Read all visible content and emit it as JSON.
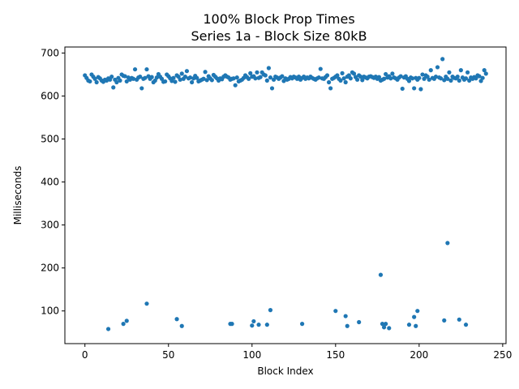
{
  "chart_data": {
    "type": "scatter",
    "title": "100% Block Prop Times",
    "subtitle": "Series 1a - Block Size 80kB",
    "xlabel": "Block Index",
    "ylabel": "Milliseconds",
    "xlim": [
      -12,
      252
    ],
    "ylim": [
      24,
      714
    ],
    "xticks": [
      0,
      50,
      100,
      150,
      200,
      250
    ],
    "yticks": [
      100,
      200,
      300,
      400,
      500,
      600,
      700
    ],
    "grid": false,
    "color": "#1f77b4",
    "series": [
      {
        "points": [
          [
            0,
            648
          ],
          [
            1,
            642
          ],
          [
            2,
            636
          ],
          [
            3,
            634
          ],
          [
            4,
            650
          ],
          [
            5,
            645
          ],
          [
            6,
            640
          ],
          [
            7,
            632
          ],
          [
            8,
            644
          ],
          [
            9,
            641
          ],
          [
            10,
            636
          ],
          [
            11,
            633
          ],
          [
            12,
            638
          ],
          [
            13,
            636
          ],
          [
            14,
            641
          ],
          [
            15,
            638
          ],
          [
            16,
            645
          ],
          [
            17,
            620
          ],
          [
            18,
            638
          ],
          [
            19,
            632
          ],
          [
            20,
            642
          ],
          [
            21,
            636
          ],
          [
            22,
            650
          ],
          [
            23,
            647
          ],
          [
            24,
            646
          ],
          [
            25,
            634
          ],
          [
            26,
            643
          ],
          [
            27,
            638
          ],
          [
            28,
            642
          ],
          [
            29,
            640
          ],
          [
            30,
            662
          ],
          [
            31,
            638
          ],
          [
            32,
            643
          ],
          [
            33,
            645
          ],
          [
            34,
            618
          ],
          [
            35,
            640
          ],
          [
            36,
            642
          ],
          [
            37,
            662
          ],
          [
            38,
            646
          ],
          [
            39,
            640
          ],
          [
            40,
            644
          ],
          [
            41,
            632
          ],
          [
            42,
            636
          ],
          [
            43,
            643
          ],
          [
            44,
            651
          ],
          [
            45,
            645
          ],
          [
            46,
            640
          ],
          [
            47,
            633
          ],
          [
            48,
            634
          ],
          [
            49,
            650
          ],
          [
            50,
            646
          ],
          [
            51,
            641
          ],
          [
            52,
            635
          ],
          [
            53,
            642
          ],
          [
            54,
            633
          ],
          [
            55,
            648
          ],
          [
            56,
            645
          ],
          [
            57,
            638
          ],
          [
            58,
            652
          ],
          [
            59,
            640
          ],
          [
            60,
            645
          ],
          [
            61,
            658
          ],
          [
            62,
            641
          ],
          [
            63,
            643
          ],
          [
            64,
            632
          ],
          [
            65,
            641
          ],
          [
            66,
            647
          ],
          [
            67,
            642
          ],
          [
            68,
            634
          ],
          [
            69,
            636
          ],
          [
            70,
            638
          ],
          [
            71,
            640
          ],
          [
            72,
            656
          ],
          [
            73,
            637
          ],
          [
            74,
            646
          ],
          [
            75,
            641
          ],
          [
            76,
            637
          ],
          [
            77,
            649
          ],
          [
            78,
            645
          ],
          [
            79,
            641
          ],
          [
            80,
            636
          ],
          [
            81,
            641
          ],
          [
            82,
            639
          ],
          [
            83,
            645
          ],
          [
            84,
            648
          ],
          [
            85,
            645
          ],
          [
            86,
            643
          ],
          [
            87,
            638
          ],
          [
            88,
            640
          ],
          [
            89,
            641
          ],
          [
            90,
            625
          ],
          [
            91,
            643
          ],
          [
            92,
            634
          ],
          [
            93,
            636
          ],
          [
            94,
            638
          ],
          [
            95,
            642
          ],
          [
            96,
            648
          ],
          [
            97,
            644
          ],
          [
            98,
            640
          ],
          [
            99,
            653
          ],
          [
            100,
            645
          ],
          [
            101,
            646
          ],
          [
            102,
            641
          ],
          [
            103,
            655
          ],
          [
            104,
            642
          ],
          [
            105,
            644
          ],
          [
            106,
            655
          ],
          [
            107,
            650
          ],
          [
            108,
            648
          ],
          [
            109,
            636
          ],
          [
            110,
            665
          ],
          [
            111,
            643
          ],
          [
            112,
            618
          ],
          [
            113,
            638
          ],
          [
            114,
            645
          ],
          [
            115,
            643
          ],
          [
            116,
            640
          ],
          [
            117,
            643
          ],
          [
            118,
            646
          ],
          [
            119,
            635
          ],
          [
            120,
            641
          ],
          [
            121,
            638
          ],
          [
            122,
            640
          ],
          [
            123,
            644
          ],
          [
            124,
            641
          ],
          [
            125,
            645
          ],
          [
            126,
            643
          ],
          [
            127,
            640
          ],
          [
            128,
            645
          ],
          [
            129,
            638
          ],
          [
            130,
            642
          ],
          [
            131,
            645
          ],
          [
            132,
            640
          ],
          [
            133,
            643
          ],
          [
            134,
            641
          ],
          [
            135,
            645
          ],
          [
            136,
            642
          ],
          [
            137,
            640
          ],
          [
            138,
            638
          ],
          [
            139,
            641
          ],
          [
            140,
            643
          ],
          [
            141,
            663
          ],
          [
            142,
            641
          ],
          [
            143,
            640
          ],
          [
            144,
            644
          ],
          [
            145,
            648
          ],
          [
            146,
            632
          ],
          [
            147,
            618
          ],
          [
            148,
            640
          ],
          [
            149,
            642
          ],
          [
            150,
            645
          ],
          [
            151,
            648
          ],
          [
            152,
            640
          ],
          [
            153,
            636
          ],
          [
            154,
            653
          ],
          [
            155,
            641
          ],
          [
            156,
            632
          ],
          [
            157,
            645
          ],
          [
            158,
            648
          ],
          [
            159,
            641
          ],
          [
            160,
            655
          ],
          [
            161,
            652
          ],
          [
            162,
            644
          ],
          [
            163,
            638
          ],
          [
            164,
            648
          ],
          [
            165,
            645
          ],
          [
            166,
            637
          ],
          [
            167,
            645
          ],
          [
            168,
            643
          ],
          [
            169,
            641
          ],
          [
            170,
            645
          ],
          [
            171,
            646
          ],
          [
            172,
            644
          ],
          [
            173,
            642
          ],
          [
            174,
            645
          ],
          [
            175,
            640
          ],
          [
            176,
            644
          ],
          [
            177,
            636
          ],
          [
            178,
            638
          ],
          [
            179,
            640
          ],
          [
            180,
            651
          ],
          [
            181,
            643
          ],
          [
            182,
            646
          ],
          [
            183,
            641
          ],
          [
            184,
            652
          ],
          [
            185,
            643
          ],
          [
            186,
            641
          ],
          [
            187,
            638
          ],
          [
            188,
            643
          ],
          [
            189,
            646
          ],
          [
            190,
            617
          ],
          [
            191,
            643
          ],
          [
            192,
            646
          ],
          [
            193,
            640
          ],
          [
            194,
            635
          ],
          [
            195,
            643
          ],
          [
            196,
            641
          ],
          [
            197,
            618
          ],
          [
            198,
            642
          ],
          [
            199,
            638
          ],
          [
            200,
            642
          ],
          [
            201,
            616
          ],
          [
            202,
            650
          ],
          [
            203,
            640
          ],
          [
            204,
            648
          ],
          [
            205,
            645
          ],
          [
            206,
            638
          ],
          [
            207,
            660
          ],
          [
            208,
            642
          ],
          [
            209,
            640
          ],
          [
            210,
            645
          ],
          [
            211,
            667
          ],
          [
            212,
            643
          ],
          [
            213,
            641
          ],
          [
            214,
            686
          ],
          [
            215,
            637
          ],
          [
            216,
            645
          ],
          [
            217,
            640
          ],
          [
            218,
            655
          ],
          [
            219,
            636
          ],
          [
            220,
            645
          ],
          [
            221,
            642
          ],
          [
            222,
            641
          ],
          [
            223,
            645
          ],
          [
            224,
            636
          ],
          [
            225,
            660
          ],
          [
            226,
            643
          ],
          [
            227,
            638
          ],
          [
            228,
            641
          ],
          [
            229,
            655
          ],
          [
            230,
            636
          ],
          [
            231,
            643
          ],
          [
            232,
            640
          ],
          [
            233,
            644
          ],
          [
            234,
            641
          ],
          [
            235,
            648
          ],
          [
            236,
            646
          ],
          [
            237,
            635
          ],
          [
            238,
            642
          ],
          [
            239,
            660
          ],
          [
            240,
            652
          ],
          [
            14,
            58
          ],
          [
            23,
            70
          ],
          [
            25,
            77
          ],
          [
            37,
            117
          ],
          [
            55,
            81
          ],
          [
            58,
            65
          ],
          [
            87,
            70
          ],
          [
            88,
            70
          ],
          [
            100,
            66
          ],
          [
            101,
            76
          ],
          [
            104,
            68
          ],
          [
            109,
            68
          ],
          [
            111,
            102
          ],
          [
            130,
            70
          ],
          [
            150,
            100
          ],
          [
            156,
            88
          ],
          [
            157,
            65
          ],
          [
            164,
            74
          ],
          [
            177,
            184
          ],
          [
            178,
            70
          ],
          [
            179,
            62
          ],
          [
            180,
            70
          ],
          [
            182,
            60
          ],
          [
            194,
            68
          ],
          [
            197,
            86
          ],
          [
            198,
            65
          ],
          [
            199,
            100
          ],
          [
            215,
            78
          ],
          [
            217,
            258
          ],
          [
            224,
            80
          ],
          [
            228,
            68
          ]
        ]
      }
    ]
  }
}
